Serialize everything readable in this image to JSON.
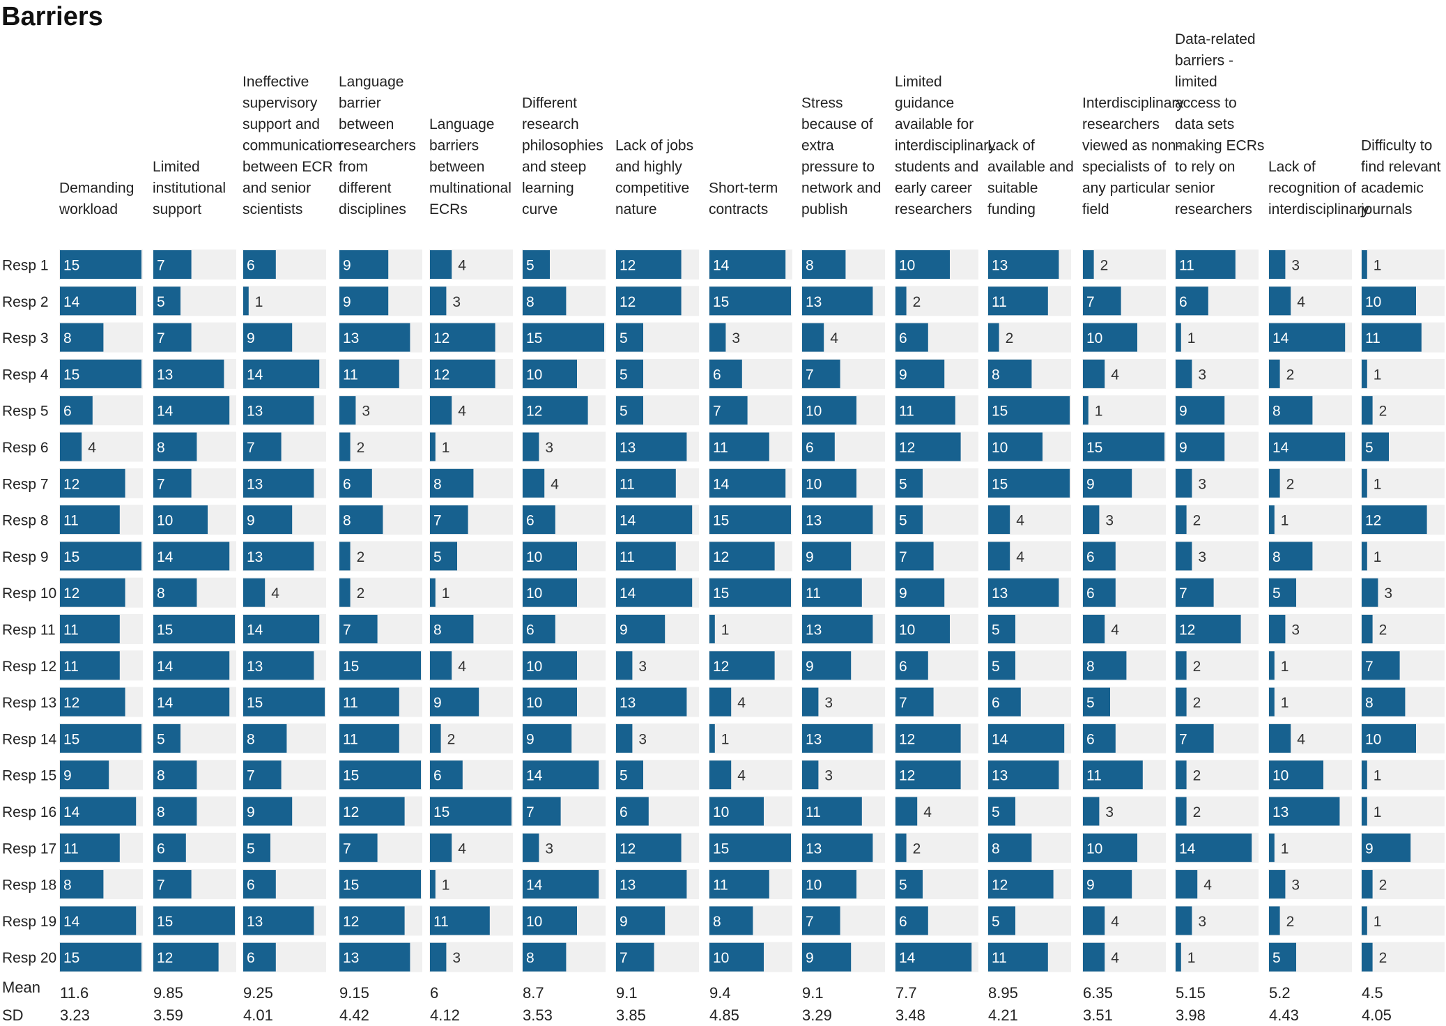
{
  "chart_data": {
    "type": "table",
    "title": "Barriers",
    "bar_color": "#17618f",
    "track_color": "#f0f0f0",
    "max_value": 15,
    "columns": [
      {
        "label": [
          "Demanding",
          "workload"
        ]
      },
      {
        "label": [
          "Limited",
          "institutional",
          "support"
        ]
      },
      {
        "label": [
          "Ineffective",
          "supervisory",
          "support and",
          "communication",
          "between ECR",
          "and senior",
          "scientists"
        ]
      },
      {
        "label": [
          "Language",
          "barrier",
          "between",
          "researchers",
          "from",
          "different",
          "disciplines"
        ]
      },
      {
        "label": [
          "Language",
          "barriers",
          "between",
          "multinational",
          "ECRs"
        ]
      },
      {
        "label": [
          "Different",
          "research",
          "philosophies",
          "and steep",
          "learning",
          "curve"
        ]
      },
      {
        "label": [
          "Lack of jobs",
          "and highly",
          "competitive",
          "nature"
        ]
      },
      {
        "label": [
          "Short-term",
          "contracts"
        ]
      },
      {
        "label": [
          "Stress",
          "because of",
          "extra",
          "pressure to",
          "network and",
          "publish"
        ]
      },
      {
        "label": [
          "Limited",
          "guidance",
          "available for",
          "interdisciplinary",
          "students and",
          "early career",
          "researchers"
        ]
      },
      {
        "label": [
          "Lack of",
          "available and",
          "suitable",
          "funding"
        ]
      },
      {
        "label": [
          "Interdisciplinary",
          "researchers",
          "viewed as non-",
          "specialists of",
          "any particular",
          "field"
        ]
      },
      {
        "label": [
          "Data-related",
          "barriers -",
          "limited",
          "access to",
          "data sets",
          "making ECRs",
          "to rely on",
          "senior",
          "researchers"
        ]
      },
      {
        "label": [
          "Lack of",
          "recognition of",
          "interdisciplinary"
        ]
      },
      {
        "label": [
          "Difficulty to",
          "find relevant",
          "academic",
          "journals"
        ]
      }
    ],
    "rows": [
      {
        "label": "Resp 1",
        "values": [
          15,
          7,
          6,
          9,
          4,
          5,
          12,
          14,
          8,
          10,
          13,
          2,
          11,
          3,
          1
        ]
      },
      {
        "label": "Resp 2",
        "values": [
          14,
          5,
          1,
          9,
          3,
          8,
          12,
          15,
          13,
          2,
          11,
          7,
          6,
          4,
          10
        ]
      },
      {
        "label": "Resp 3",
        "values": [
          8,
          7,
          9,
          13,
          12,
          15,
          5,
          3,
          4,
          6,
          2,
          10,
          1,
          14,
          11
        ]
      },
      {
        "label": "Resp 4",
        "values": [
          15,
          13,
          14,
          11,
          12,
          10,
          5,
          6,
          7,
          9,
          8,
          4,
          3,
          2,
          1
        ]
      },
      {
        "label": "Resp 5",
        "values": [
          6,
          14,
          13,
          3,
          4,
          12,
          5,
          7,
          10,
          11,
          15,
          1,
          9,
          8,
          2
        ]
      },
      {
        "label": "Resp 6",
        "values": [
          4,
          8,
          7,
          2,
          1,
          3,
          13,
          11,
          6,
          12,
          10,
          15,
          9,
          14,
          5
        ]
      },
      {
        "label": "Resp 7",
        "values": [
          12,
          7,
          13,
          6,
          8,
          4,
          11,
          14,
          10,
          5,
          15,
          9,
          3,
          2,
          1
        ]
      },
      {
        "label": "Resp 8",
        "values": [
          11,
          10,
          9,
          8,
          7,
          6,
          14,
          15,
          13,
          5,
          4,
          3,
          2,
          1,
          12
        ]
      },
      {
        "label": "Resp 9",
        "values": [
          15,
          14,
          13,
          2,
          5,
          10,
          11,
          12,
          9,
          7,
          4,
          6,
          3,
          8,
          1
        ]
      },
      {
        "label": "Resp 10",
        "values": [
          12,
          8,
          4,
          2,
          1,
          10,
          14,
          15,
          11,
          9,
          13,
          6,
          7,
          5,
          3
        ]
      },
      {
        "label": "Resp 11",
        "values": [
          11,
          15,
          14,
          7,
          8,
          6,
          9,
          1,
          13,
          10,
          5,
          4,
          12,
          3,
          2
        ]
      },
      {
        "label": "Resp 12",
        "values": [
          11,
          14,
          13,
          15,
          4,
          10,
          3,
          12,
          9,
          6,
          5,
          8,
          2,
          1,
          7
        ]
      },
      {
        "label": "Resp 13",
        "values": [
          12,
          14,
          15,
          11,
          9,
          10,
          13,
          4,
          3,
          7,
          6,
          5,
          2,
          1,
          8
        ]
      },
      {
        "label": "Resp 14",
        "values": [
          15,
          5,
          8,
          11,
          2,
          9,
          3,
          1,
          13,
          12,
          14,
          6,
          7,
          4,
          10
        ]
      },
      {
        "label": "Resp 15",
        "values": [
          9,
          8,
          7,
          15,
          6,
          14,
          5,
          4,
          3,
          12,
          13,
          11,
          2,
          10,
          1
        ]
      },
      {
        "label": "Resp 16",
        "values": [
          14,
          8,
          9,
          12,
          15,
          7,
          6,
          10,
          11,
          4,
          5,
          3,
          2,
          13,
          1
        ]
      },
      {
        "label": "Resp 17",
        "values": [
          11,
          6,
          5,
          7,
          4,
          3,
          12,
          15,
          13,
          2,
          8,
          10,
          14,
          1,
          9
        ]
      },
      {
        "label": "Resp 18",
        "values": [
          8,
          7,
          6,
          15,
          1,
          14,
          13,
          11,
          10,
          5,
          12,
          9,
          4,
          3,
          2
        ]
      },
      {
        "label": "Resp 19",
        "values": [
          14,
          15,
          13,
          12,
          11,
          10,
          9,
          8,
          7,
          6,
          5,
          4,
          3,
          2,
          1
        ]
      },
      {
        "label": "Resp 20",
        "values": [
          15,
          12,
          6,
          13,
          3,
          8,
          7,
          10,
          9,
          14,
          11,
          4,
          1,
          5,
          2
        ]
      }
    ],
    "summary": [
      {
        "label": "Mean",
        "values": [
          "11.6",
          "9.85",
          "9.25",
          "9.15",
          "6",
          "8.7",
          "9.1",
          "9.4",
          "9.1",
          "7.7",
          "8.95",
          "6.35",
          "5.15",
          "5.2",
          "4.5"
        ]
      },
      {
        "label": "SD",
        "values": [
          "3.23",
          "3.59",
          "4.01",
          "4.42",
          "4.12",
          "3.53",
          "3.85",
          "4.85",
          "3.29",
          "3.48",
          "4.21",
          "3.51",
          "3.98",
          "4.43",
          "4.05"
        ]
      }
    ]
  }
}
